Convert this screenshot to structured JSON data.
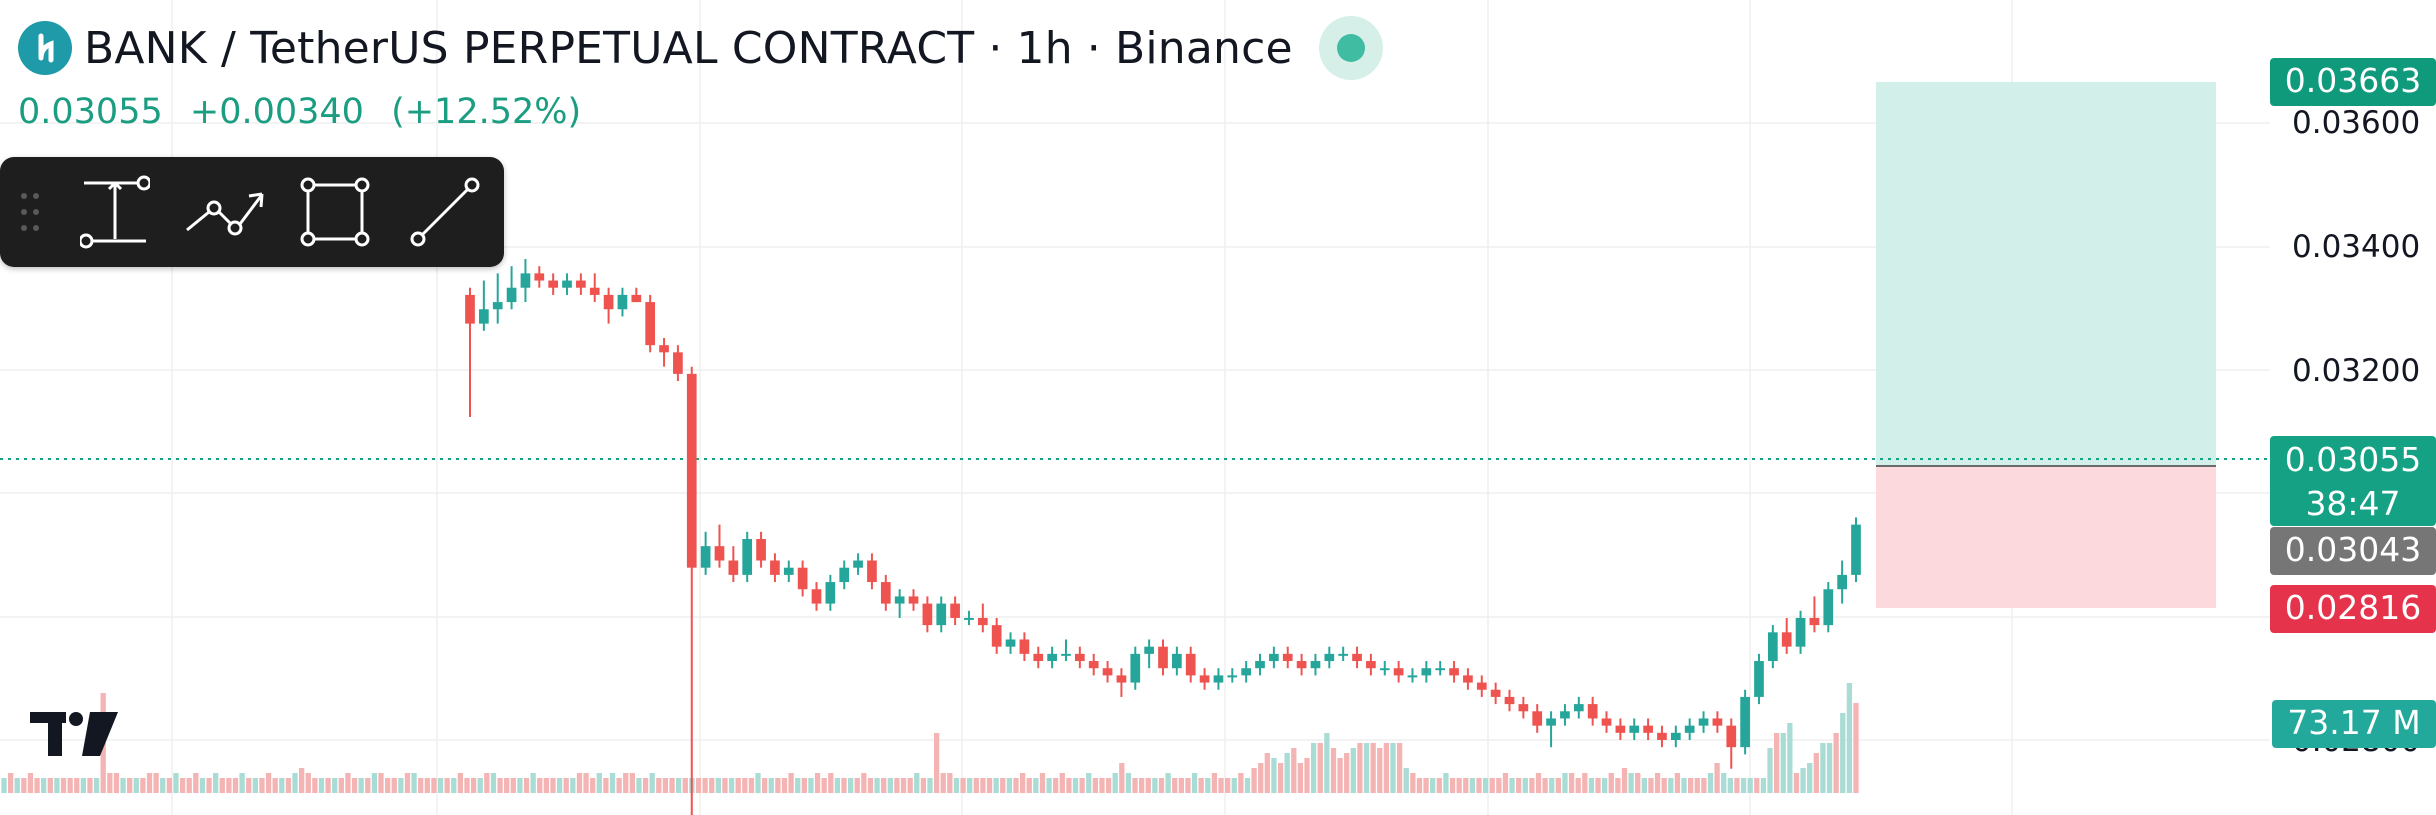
{
  "header": {
    "title": "BANK / TetherUS PERPETUAL CONTRACT",
    "interval": "1h",
    "exchange": "Binance",
    "sep": "·",
    "logo_icon": "bank-token-icon",
    "status_icon": "market-open-status-dot"
  },
  "quote": {
    "last": "0.03055",
    "change": "+0.00340",
    "change_pct": "(+12.52%)",
    "color": "#1a9d80"
  },
  "toolbar": {
    "tools": [
      "drag-handle-icon",
      "measure-icon",
      "path-icon",
      "rectangle-icon",
      "trend-line-icon"
    ]
  },
  "price_axis": {
    "ticks": [
      "0.03600",
      "0.03400",
      "0.03200",
      "0.02800"
    ],
    "tags": {
      "target": "0.03663",
      "last": "0.03055",
      "countdown": "38:47",
      "entry": "0.03043",
      "stop": "0.02816",
      "volume": "73.17 M"
    }
  },
  "colors": {
    "up": "#26a69a",
    "down": "#ef5350",
    "profit_zone": "#d3efe9",
    "loss_zone": "#fbd9dc",
    "target_tag": "#0f9a7c",
    "stop_tag": "#e6334c",
    "entry_tag": "#767676"
  },
  "chart_data": {
    "type": "candlestick",
    "ylim": [
      0.0276,
      0.0371
    ],
    "ticks": [
      0.036,
      0.034,
      0.032,
      0.028
    ],
    "last_price": 0.03055,
    "long_position": {
      "entry": 0.03043,
      "target": 0.03663,
      "stop": 0.02816
    },
    "ohlc": [
      [
        0.0338,
        0.0339,
        0.0321,
        0.0334
      ],
      [
        0.0334,
        0.034,
        0.0333,
        0.0336
      ],
      [
        0.0336,
        0.0341,
        0.0334,
        0.0337
      ],
      [
        0.0337,
        0.0342,
        0.0336,
        0.0339
      ],
      [
        0.0339,
        0.0343,
        0.0337,
        0.0341
      ],
      [
        0.0341,
        0.0342,
        0.0339,
        0.034
      ],
      [
        0.034,
        0.0341,
        0.0338,
        0.0339
      ],
      [
        0.0339,
        0.0341,
        0.0338,
        0.034
      ],
      [
        0.034,
        0.0341,
        0.0338,
        0.0339
      ],
      [
        0.0339,
        0.0341,
        0.0337,
        0.0338
      ],
      [
        0.0338,
        0.0339,
        0.0334,
        0.0336
      ],
      [
        0.0336,
        0.0339,
        0.0335,
        0.0338
      ],
      [
        0.0338,
        0.0339,
        0.0337,
        0.0337
      ],
      [
        0.0337,
        0.0338,
        0.033,
        0.0331
      ],
      [
        0.0331,
        0.0332,
        0.0328,
        0.033
      ],
      [
        0.033,
        0.0331,
        0.0326,
        0.0327
      ],
      [
        0.0327,
        0.0328,
        0.0265,
        0.03
      ],
      [
        0.03,
        0.0305,
        0.0299,
        0.0303
      ],
      [
        0.0303,
        0.0306,
        0.03,
        0.0301
      ],
      [
        0.0301,
        0.0303,
        0.0298,
        0.0299
      ],
      [
        0.0299,
        0.0305,
        0.0298,
        0.0304
      ],
      [
        0.0304,
        0.0305,
        0.03,
        0.0301
      ],
      [
        0.0301,
        0.0302,
        0.0298,
        0.0299
      ],
      [
        0.0299,
        0.0301,
        0.0298,
        0.03
      ],
      [
        0.03,
        0.0301,
        0.0296,
        0.0297
      ],
      [
        0.0297,
        0.0298,
        0.0294,
        0.0295
      ],
      [
        0.0295,
        0.0299,
        0.0294,
        0.0298
      ],
      [
        0.0298,
        0.0301,
        0.0297,
        0.03
      ],
      [
        0.03,
        0.0302,
        0.0299,
        0.0301
      ],
      [
        0.0301,
        0.0302,
        0.0297,
        0.0298
      ],
      [
        0.0298,
        0.0299,
        0.0294,
        0.0295
      ],
      [
        0.0295,
        0.0297,
        0.0293,
        0.0296
      ],
      [
        0.0296,
        0.0297,
        0.0294,
        0.0295
      ],
      [
        0.0295,
        0.0296,
        0.0291,
        0.0292
      ],
      [
        0.0292,
        0.0296,
        0.0291,
        0.0295
      ],
      [
        0.0295,
        0.0296,
        0.0292,
        0.0293
      ],
      [
        0.0293,
        0.0294,
        0.0292,
        0.0293
      ],
      [
        0.0293,
        0.0295,
        0.0291,
        0.0292
      ],
      [
        0.0292,
        0.0293,
        0.0288,
        0.0289
      ],
      [
        0.0289,
        0.0291,
        0.0288,
        0.029
      ],
      [
        0.029,
        0.0291,
        0.0287,
        0.0288
      ],
      [
        0.0288,
        0.0289,
        0.0286,
        0.0287
      ],
      [
        0.0287,
        0.0289,
        0.0286,
        0.0288
      ],
      [
        0.0288,
        0.029,
        0.0287,
        0.0288
      ],
      [
        0.0288,
        0.0289,
        0.0286,
        0.0287
      ],
      [
        0.0287,
        0.0288,
        0.0285,
        0.0286
      ],
      [
        0.0286,
        0.0287,
        0.0284,
        0.0285
      ],
      [
        0.0285,
        0.0286,
        0.0282,
        0.0284
      ],
      [
        0.0284,
        0.0289,
        0.0283,
        0.0288
      ],
      [
        0.0288,
        0.029,
        0.0286,
        0.0289
      ],
      [
        0.0289,
        0.029,
        0.0285,
        0.0286
      ],
      [
        0.0286,
        0.0289,
        0.0285,
        0.0288
      ],
      [
        0.0288,
        0.0289,
        0.0284,
        0.0285
      ],
      [
        0.0285,
        0.0286,
        0.0283,
        0.0284
      ],
      [
        0.0284,
        0.0286,
        0.0283,
        0.0285
      ],
      [
        0.0285,
        0.0286,
        0.0284,
        0.0285
      ],
      [
        0.0285,
        0.0287,
        0.0284,
        0.0286
      ],
      [
        0.0286,
        0.0288,
        0.0285,
        0.0287
      ],
      [
        0.0287,
        0.0289,
        0.0286,
        0.0288
      ],
      [
        0.0288,
        0.0289,
        0.0286,
        0.0287
      ],
      [
        0.0287,
        0.0288,
        0.0285,
        0.0286
      ],
      [
        0.0286,
        0.0288,
        0.0285,
        0.0287
      ],
      [
        0.0287,
        0.0289,
        0.0286,
        0.0288
      ],
      [
        0.0288,
        0.0289,
        0.0287,
        0.0288
      ],
      [
        0.0288,
        0.0289,
        0.0286,
        0.0287
      ],
      [
        0.0287,
        0.0288,
        0.0285,
        0.0286
      ],
      [
        0.0286,
        0.0287,
        0.0285,
        0.0286
      ],
      [
        0.0286,
        0.0287,
        0.0284,
        0.0285
      ],
      [
        0.0285,
        0.0286,
        0.0284,
        0.0285
      ],
      [
        0.0285,
        0.0287,
        0.0284,
        0.0286
      ],
      [
        0.0286,
        0.0287,
        0.0285,
        0.0286
      ],
      [
        0.0286,
        0.0287,
        0.0284,
        0.0285
      ],
      [
        0.0285,
        0.0286,
        0.0283,
        0.0284
      ],
      [
        0.0284,
        0.0285,
        0.0282,
        0.0283
      ],
      [
        0.0283,
        0.0284,
        0.0281,
        0.0282
      ],
      [
        0.0282,
        0.0283,
        0.028,
        0.0281
      ],
      [
        0.0281,
        0.0282,
        0.0279,
        0.028
      ],
      [
        0.028,
        0.0281,
        0.0277,
        0.0278
      ],
      [
        0.0278,
        0.028,
        0.0275,
        0.0279
      ],
      [
        0.0279,
        0.0281,
        0.0278,
        0.028
      ],
      [
        0.028,
        0.0282,
        0.0279,
        0.0281
      ],
      [
        0.0281,
        0.0282,
        0.0278,
        0.0279
      ],
      [
        0.0279,
        0.028,
        0.0277,
        0.0278
      ],
      [
        0.0278,
        0.0279,
        0.0276,
        0.0277
      ],
      [
        0.0277,
        0.0279,
        0.0276,
        0.0278
      ],
      [
        0.0278,
        0.0279,
        0.0276,
        0.0277
      ],
      [
        0.0277,
        0.0278,
        0.0275,
        0.0276
      ],
      [
        0.0276,
        0.0278,
        0.0275,
        0.0277
      ],
      [
        0.0277,
        0.0279,
        0.0276,
        0.0278
      ],
      [
        0.0278,
        0.028,
        0.0277,
        0.0279
      ],
      [
        0.0279,
        0.028,
        0.0277,
        0.0278
      ],
      [
        0.0278,
        0.0279,
        0.0272,
        0.0275
      ],
      [
        0.0275,
        0.0283,
        0.0274,
        0.0282
      ],
      [
        0.0282,
        0.0288,
        0.0281,
        0.0287
      ],
      [
        0.0287,
        0.0292,
        0.0286,
        0.0291
      ],
      [
        0.0291,
        0.0293,
        0.0288,
        0.0289
      ],
      [
        0.0289,
        0.0294,
        0.0288,
        0.0293
      ],
      [
        0.0293,
        0.0296,
        0.0291,
        0.0292
      ],
      [
        0.0292,
        0.0298,
        0.0291,
        0.0297
      ],
      [
        0.0297,
        0.0301,
        0.0295,
        0.0299
      ],
      [
        0.0299,
        0.0307,
        0.0298,
        0.0306
      ]
    ],
    "volume_series": {
      "values": [
        3,
        4,
        3,
        3,
        4,
        3,
        3,
        3,
        3,
        3,
        3,
        3,
        3,
        3,
        3,
        20,
        4,
        4,
        3,
        3,
        3,
        3,
        4,
        4,
        3,
        3,
        4,
        3,
        3,
        4,
        3,
        3,
        4,
        3,
        3,
        3,
        4,
        3,
        3,
        3,
        4,
        3,
        3,
        3,
        4,
        5,
        4,
        3,
        3,
        3,
        3,
        3,
        4,
        3,
        3,
        3,
        4,
        4,
        3,
        3,
        3,
        4,
        4,
        3,
        3,
        3,
        3,
        3,
        3,
        4,
        3,
        3,
        3,
        4,
        4,
        3,
        3,
        3,
        3,
        3,
        4,
        3,
        3,
        3,
        3,
        3,
        3,
        4,
        4,
        3,
        4,
        3,
        4,
        3,
        4,
        4,
        3,
        3,
        4,
        3,
        3,
        3,
        3,
        3,
        3,
        3,
        3,
        3,
        3,
        3,
        3,
        3,
        3,
        3,
        4,
        3,
        3,
        3,
        3,
        4,
        3,
        3,
        3,
        4,
        3,
        4,
        3,
        3,
        3,
        3,
        4,
        3,
        3,
        3,
        3,
        3,
        3,
        3,
        4,
        3,
        3,
        12,
        4,
        4,
        3,
        3,
        3,
        3,
        3,
        3,
        3,
        3,
        3,
        3,
        4,
        3,
        3,
        4,
        3,
        3,
        4,
        3,
        3,
        3,
        4,
        3,
        3,
        3,
        4,
        6,
        4,
        3,
        3,
        3,
        3,
        3,
        4,
        3,
        3,
        3,
        4,
        3,
        3,
        4,
        3,
        3,
        3,
        4,
        3,
        5,
        6,
        8,
        7,
        6,
        8,
        9,
        6,
        7,
        10,
        10,
        12,
        9,
        7,
        8,
        9,
        10,
        10,
        10,
        9,
        10,
        10,
        10,
        5,
        4,
        3,
        3,
        3,
        3,
        4,
        3,
        3,
        3,
        3,
        3,
        3,
        3,
        3,
        4,
        3,
        3,
        3,
        3,
        4,
        3,
        3,
        3,
        4,
        4,
        3,
        4,
        3,
        3,
        3,
        4,
        3,
        5,
        4,
        4,
        3,
        3,
        4,
        3,
        3,
        4,
        3,
        3,
        3,
        3,
        4,
        6,
        4,
        3,
        3,
        3,
        3,
        3,
        3,
        9,
        12,
        12,
        14,
        4,
        5,
        6,
        8,
        10,
        10,
        12,
        16,
        22,
        18
      ],
      "max": 24
    }
  }
}
